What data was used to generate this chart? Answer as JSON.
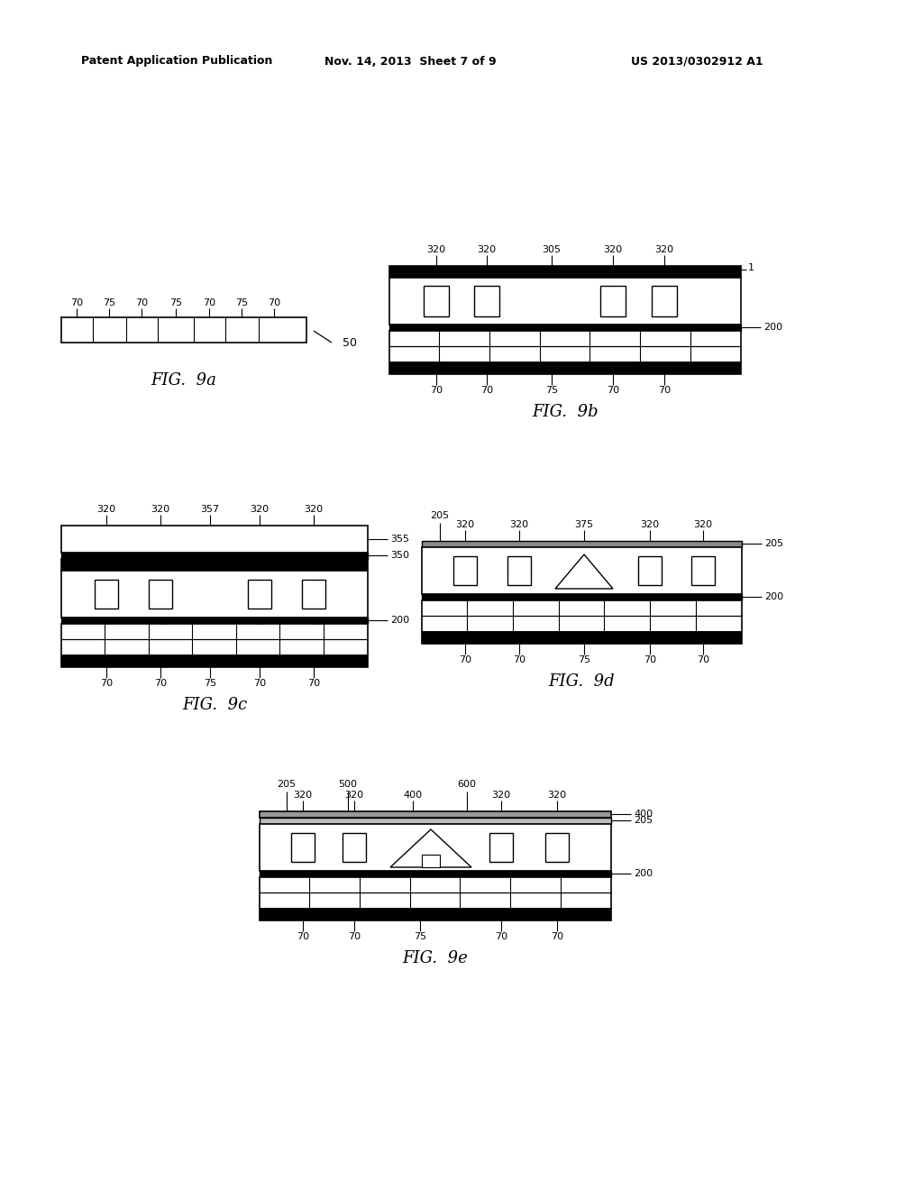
{
  "bg_color": "#ffffff",
  "header_left": "Patent Application Publication",
  "header_mid": "Nov. 14, 2013  Sheet 7 of 9",
  "header_right": "US 2013/0302912 A1",
  "line_color": "#000000"
}
